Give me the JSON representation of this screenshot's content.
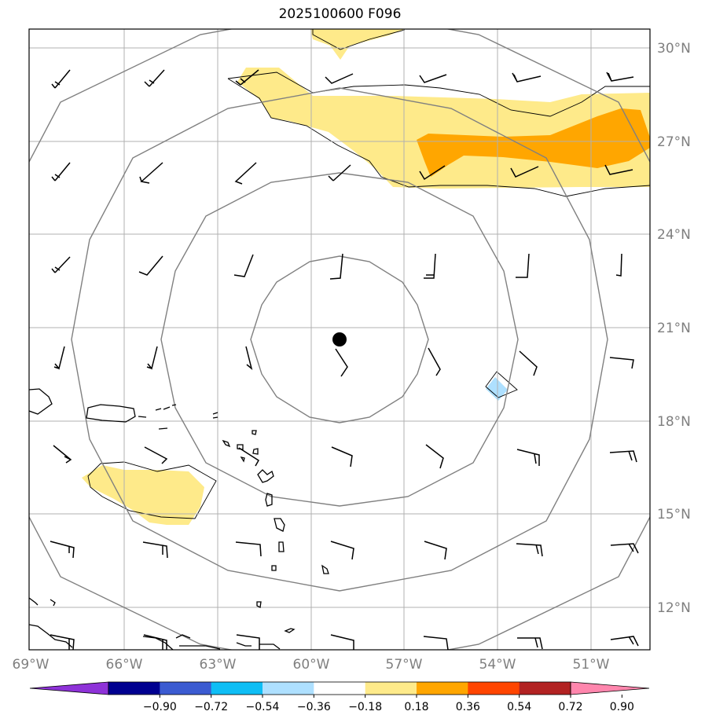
{
  "title": "2025100600 F096",
  "map": {
    "lon_range": [
      -69,
      -49.5
    ],
    "lat_range": [
      10.7,
      30.6
    ],
    "center": {
      "lon": -59.1,
      "lat": 20.6
    },
    "lat_ticks": [
      {
        "value": 30,
        "label": "30°N"
      },
      {
        "value": 27,
        "label": "27°N"
      },
      {
        "value": 24,
        "label": "24°N"
      },
      {
        "value": 21,
        "label": "21°N"
      },
      {
        "value": 18,
        "label": "18°N"
      },
      {
        "value": 15,
        "label": "15°N"
      },
      {
        "value": 12,
        "label": "12°N"
      }
    ],
    "lon_ticks": [
      {
        "value": -69,
        "label": "69°W"
      },
      {
        "value": -66,
        "label": "66°W"
      },
      {
        "value": -63,
        "label": "63°W"
      },
      {
        "value": -60,
        "label": "60°W"
      },
      {
        "value": -57,
        "label": "57°W"
      },
      {
        "value": -54,
        "label": "54°W"
      },
      {
        "value": -51,
        "label": "51°W"
      }
    ]
  },
  "colorbar": {
    "colors": [
      "#8e32d8",
      "#000090",
      "#3b5bd1",
      "#0fbef5",
      "#aee0ff",
      "#ffffff",
      "#feea8a",
      "#ffa600",
      "#ff4500",
      "#b22222",
      "#ff86ad"
    ],
    "labels": [
      "−0.90",
      "−0.72",
      "−0.54",
      "−0.36",
      "−0.18",
      "0.18",
      "0.36",
      "0.54",
      "0.72",
      "0.90"
    ]
  }
}
